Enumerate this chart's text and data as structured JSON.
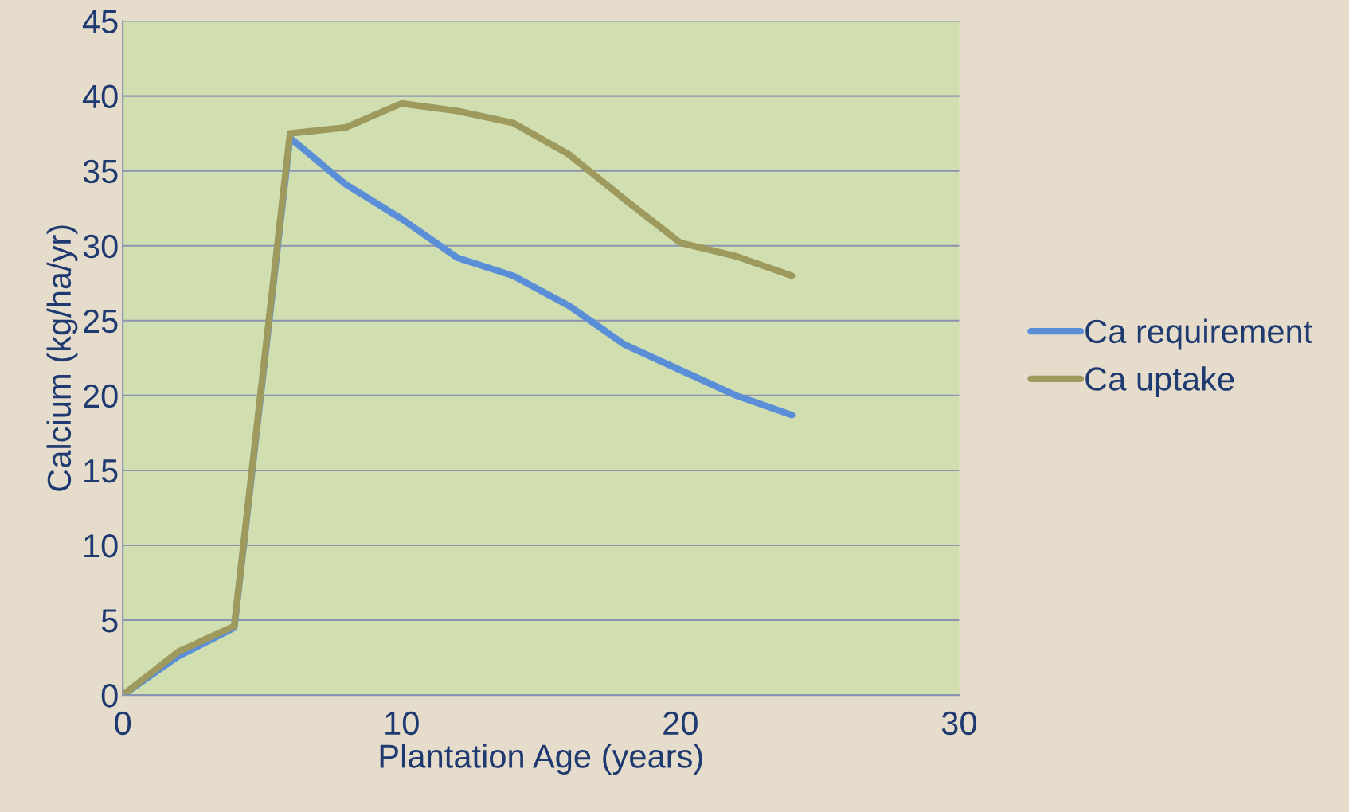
{
  "chart_data": {
    "type": "line",
    "xlabel": "Plantation Age (years)",
    "ylabel": "Calcium (kg/ha/yr)",
    "x": [
      0,
      2,
      4,
      6,
      8,
      10,
      12,
      14,
      16,
      18,
      20,
      22,
      24
    ],
    "series": [
      {
        "name": "Ca requirement",
        "color": "#5a8fd8",
        "values": [
          0,
          2.6,
          4.5,
          37.2,
          34.1,
          31.8,
          29.2,
          28,
          26,
          23.4,
          21.7,
          20,
          18.7
        ]
      },
      {
        "name": "Ca uptake",
        "color": "#9e995c",
        "values": [
          0,
          2.9,
          4.6,
          37.5,
          37.9,
          39.5,
          39,
          38.2,
          36.1,
          33.1,
          30.2,
          29.3,
          28
        ]
      }
    ],
    "xlim": [
      0,
      30
    ],
    "xticks": [
      0,
      10,
      20,
      30
    ],
    "ylim": [
      0,
      45
    ],
    "yticks": [
      0,
      5,
      10,
      15,
      20,
      25,
      30,
      35,
      40,
      45
    ],
    "grid": "y",
    "legend": "right",
    "marker": "none",
    "line_style": "solid"
  }
}
